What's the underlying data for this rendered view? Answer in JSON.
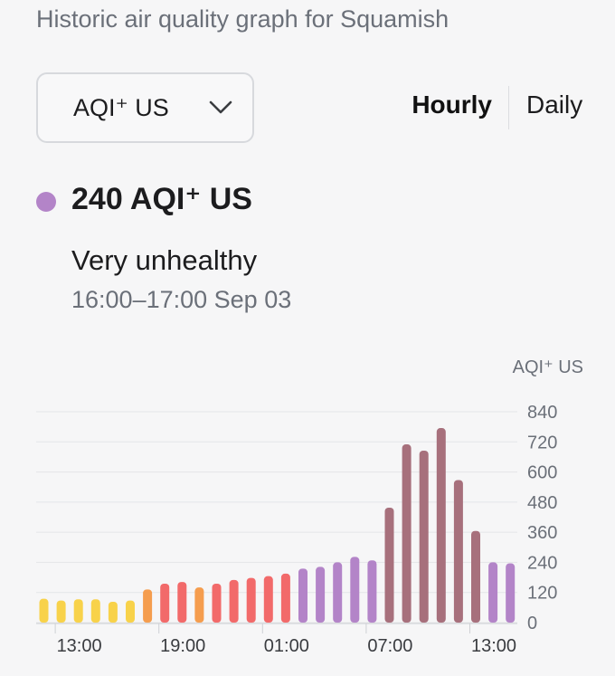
{
  "header": {
    "title": "Historic air quality graph for Squamish"
  },
  "selector": {
    "value": "AQI⁺ US",
    "icon": "chevron-down-icon"
  },
  "tabs": [
    {
      "label": "Hourly",
      "active": true
    },
    {
      "label": "Daily",
      "active": false
    }
  ],
  "current": {
    "value_label": "240 AQI⁺ US",
    "category": "Very unhealthy",
    "time_range": "16:00–17:00 Sep 03",
    "dot_color": "#b384c8"
  },
  "chart_data": {
    "type": "bar",
    "unit_label": "AQI⁺ US",
    "ylim": [
      0,
      840
    ],
    "yticks": [
      0,
      120,
      240,
      360,
      480,
      600,
      720,
      840
    ],
    "xtick_labels": [
      "13:00",
      "19:00",
      "01:00",
      "07:00",
      "13:00"
    ],
    "xtick_indices": [
      1,
      7,
      13,
      19,
      25
    ],
    "grid": true,
    "values": [
      95,
      88,
      93,
      93,
      83,
      88,
      132,
      155,
      162,
      140,
      155,
      170,
      178,
      185,
      195,
      215,
      222,
      240,
      262,
      248,
      458,
      710,
      685,
      775,
      568,
      365,
      240,
      236
    ],
    "colors": [
      "#f8d24a",
      "#f8d24a",
      "#f8d24a",
      "#f8d24a",
      "#f8d24a",
      "#f8d24a",
      "#f59d4e",
      "#f26a6a",
      "#f26a6a",
      "#f59d4e",
      "#f26a6a",
      "#f26a6a",
      "#f26a6a",
      "#f26a6a",
      "#f26a6a",
      "#b384c8",
      "#b384c8",
      "#b384c8",
      "#b384c8",
      "#b384c8",
      "#a7707c",
      "#a7707c",
      "#a7707c",
      "#a7707c",
      "#a7707c",
      "#a7707c",
      "#b384c8",
      "#b384c8"
    ]
  }
}
